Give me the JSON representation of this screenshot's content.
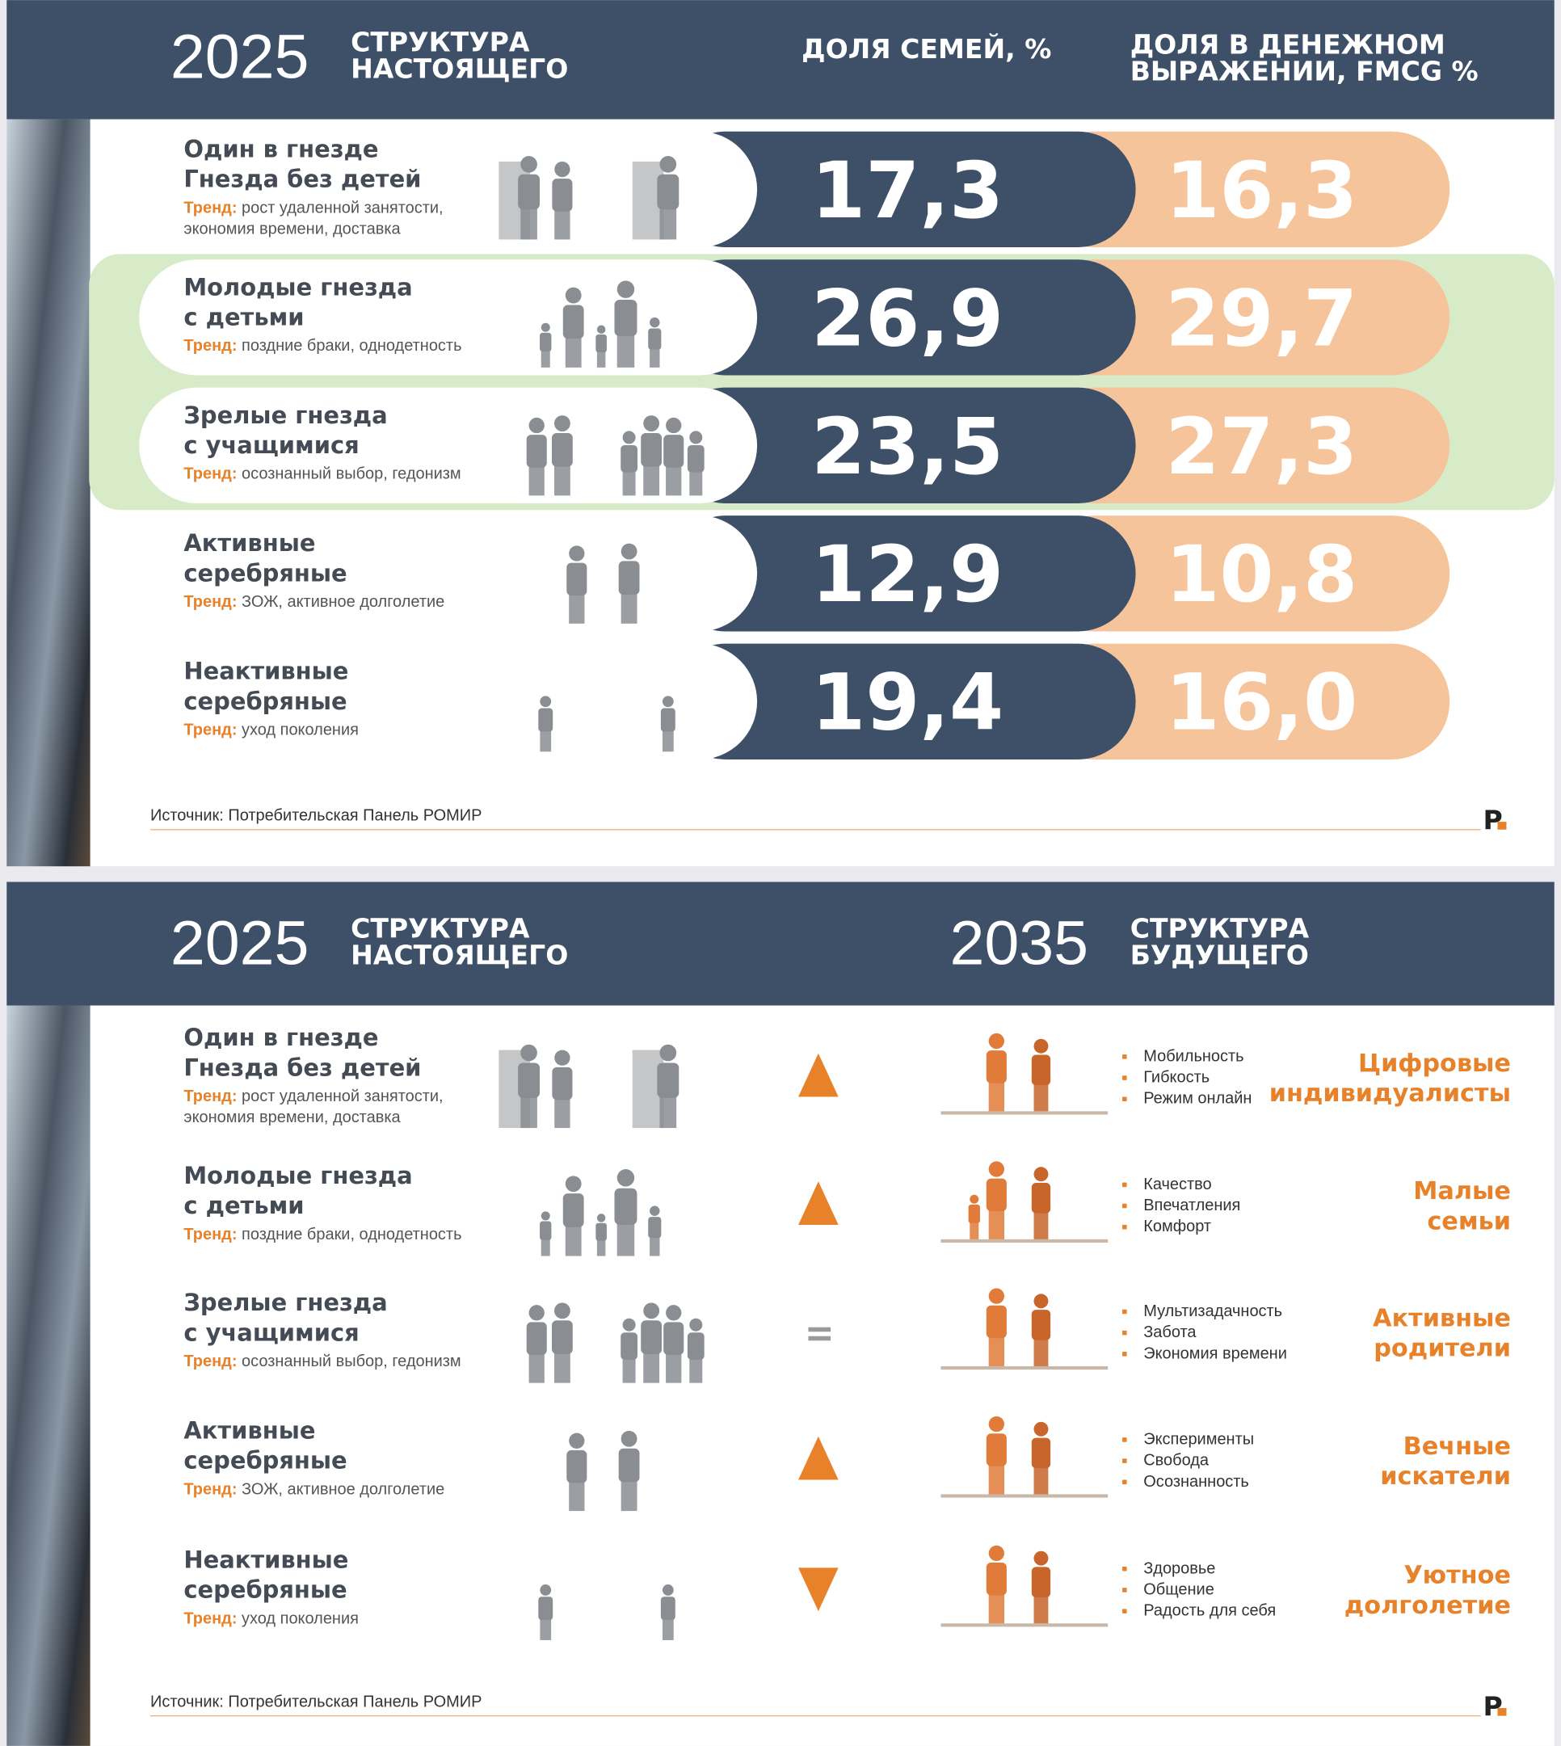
{
  "slide1": {
    "header": {
      "year": "2025",
      "title": [
        "СТРУКТУРА",
        "НАСТОЯЩЕГО"
      ],
      "col1": [
        "ДОЛЯ СЕМЕЙ, %"
      ],
      "col2": [
        "ДОЛЯ В ДЕНЕЖНОМ",
        "ВЫРАЖЕНИИ, FMCG %"
      ]
    },
    "rows": [
      {
        "name": [
          "Один в гнезде",
          "Гнезда без детей"
        ],
        "trend_label": "Тренд:",
        "trend": [
          "рост удаленной занятости,",
          "экономия времени, доставка"
        ],
        "families": "17,3",
        "money": "16,3"
      },
      {
        "name": [
          "Молодые гнезда",
          "с детьми"
        ],
        "trend_label": "Тренд:",
        "trend": [
          "поздние браки, однодетность"
        ],
        "families": "26,9",
        "money": "29,7"
      },
      {
        "name": [
          "Зрелые гнезда",
          "с учащимися"
        ],
        "trend_label": "Тренд:",
        "trend": [
          "осознанный выбор, гедонизм"
        ],
        "families": "23,5",
        "money": "27,3"
      },
      {
        "name": [
          "Активные",
          "серебряные"
        ],
        "trend_label": "Тренд:",
        "trend": [
          "ЗОЖ, активное долголетие"
        ],
        "families": "12,9",
        "money": "10,8"
      },
      {
        "name": [
          "Неактивные",
          "серебряные"
        ],
        "trend_label": "Тренд:",
        "trend": [
          "уход поколения"
        ],
        "families": "19,4",
        "money": "16,0"
      }
    ],
    "source": "Источник: Потребительская Панель РОМИР",
    "logo": "P"
  },
  "slide2": {
    "header": {
      "year": "2025",
      "title": [
        "СТРУКТУРА",
        "НАСТОЯЩЕГО"
      ],
      "year2": "2035",
      "title2": [
        "СТРУКТУРА",
        "БУДУЩЕГО"
      ]
    },
    "rows": [
      {
        "name": [
          "Один в гнезде",
          "Гнезда без детей"
        ],
        "trend_label": "Тренд:",
        "trend": [
          "рост удаленной занятости,",
          "экономия времени, доставка"
        ],
        "bullets": [
          "Мобильность",
          "Гибкость",
          "Режим онлайн"
        ],
        "future": [
          "Цифровые",
          "индивидуалисты"
        ]
      },
      {
        "name": [
          "Молодые гнезда",
          "с детьми"
        ],
        "trend_label": "Тренд:",
        "trend": [
          "поздние браки, однодетность"
        ],
        "bullets": [
          "Качество",
          "Впечатления",
          "Комфорт"
        ],
        "future": [
          "Малые",
          "семьи"
        ]
      },
      {
        "name": [
          "Зрелые гнезда",
          "с учащимися"
        ],
        "trend_label": "Тренд:",
        "trend": [
          "осознанный выбор, гедонизм"
        ],
        "bullets": [
          "Мультизадачность",
          "Забота",
          "Экономия времени"
        ],
        "future": [
          "Активные",
          "родители"
        ]
      },
      {
        "name": [
          "Активные",
          "серебряные"
        ],
        "trend_label": "Тренд:",
        "trend": [
          "ЗОЖ, активное долголетие"
        ],
        "bullets": [
          "Эксперименты",
          "Свобода",
          "Осознанность"
        ],
        "future": [
          "Вечные",
          "искатели"
        ]
      },
      {
        "name": [
          "Неактивные",
          "серебряные"
        ],
        "trend_label": "Тренд:",
        "trend": [
          "уход поколения"
        ],
        "bullets": [
          "Здоровье",
          "Общение",
          "Радость для себя"
        ],
        "future": [
          "Уютное",
          "долголетие"
        ]
      }
    ],
    "source": "Источник: Потребительская Панель РОМИР",
    "logo": "P"
  }
}
